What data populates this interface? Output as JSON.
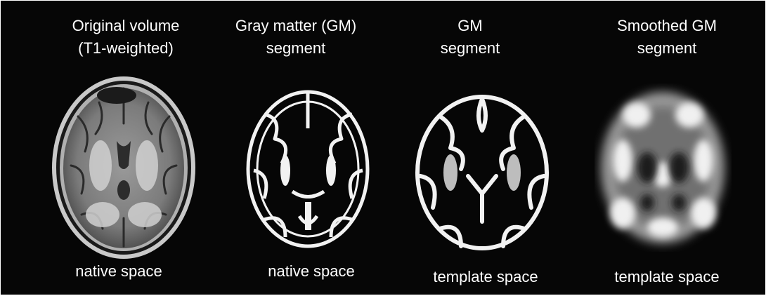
{
  "panels": [
    {
      "title_line1": "Original volume",
      "title_line2": "(T1-weighted)",
      "image": "axial-t1-brain-slice",
      "caption": "native space"
    },
    {
      "title_line1": "Gray matter (GM)",
      "title_line2": "segment",
      "image": "gray-matter-segment-native",
      "caption": "native space"
    },
    {
      "title_line1": "GM",
      "title_line2": "segment",
      "image": "gray-matter-segment-template",
      "caption": "template space"
    },
    {
      "title_line1": "Smoothed GM",
      "title_line2": "segment",
      "image": "smoothed-gray-matter-segment",
      "caption": "template space"
    }
  ],
  "colors": {
    "background": "#060606",
    "text": "#ffffff",
    "tissue_gray": "#8a8a8a",
    "gm_white": "#f2f2f2"
  }
}
